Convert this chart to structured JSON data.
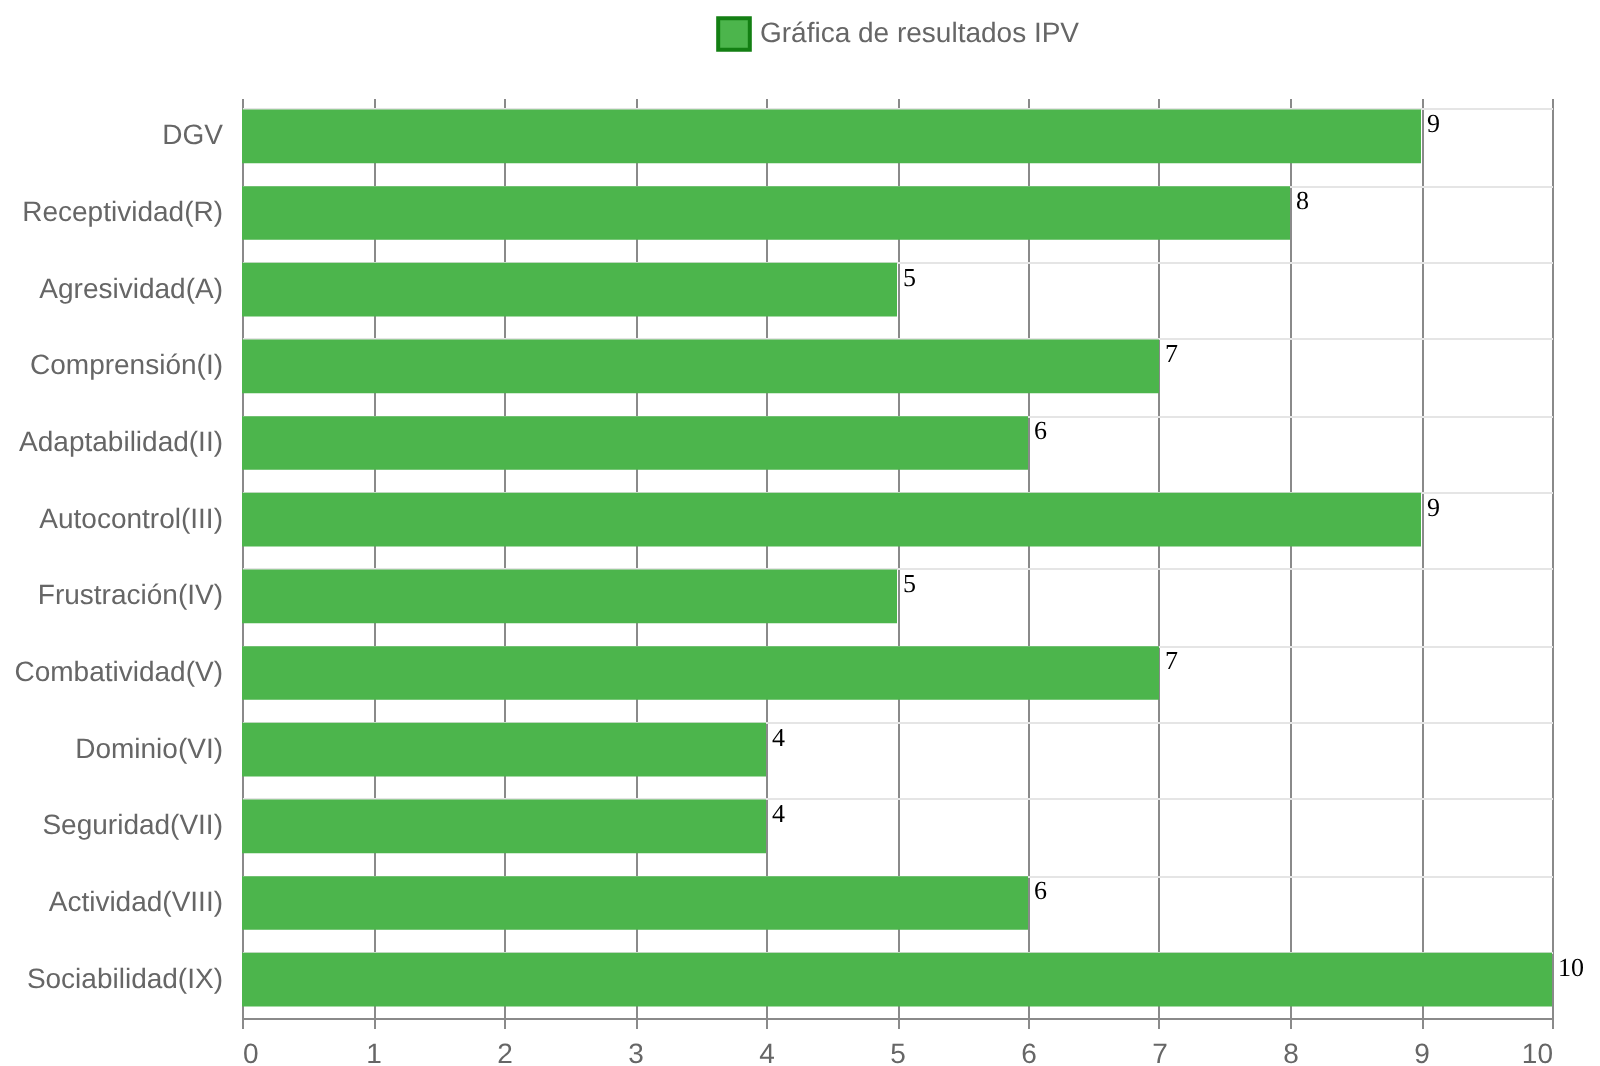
{
  "chart_data": {
    "type": "bar",
    "orientation": "horizontal",
    "categories": [
      "DGV",
      "Receptividad(R)",
      "Agresividad(A)",
      "Comprensión(I)",
      "Adaptabilidad(II)",
      "Autocontrol(III)",
      "Frustración(IV)",
      "Combatividad(V)",
      "Dominio(VI)",
      "Seguridad(VII)",
      "Actividad(VIII)",
      "Sociabilidad(IX)"
    ],
    "series": [
      {
        "name": "Gráfica de resultados IPV",
        "color": "#4cb54c",
        "values": [
          9,
          8,
          5,
          7,
          6,
          9,
          5,
          7,
          4,
          4,
          6,
          10
        ]
      }
    ],
    "xlim": [
      0,
      10
    ],
    "xticks": [
      0,
      1,
      2,
      3,
      4,
      5,
      6,
      7,
      8,
      9,
      10
    ],
    "grid": true,
    "legend": "top",
    "data_labels": true
  }
}
